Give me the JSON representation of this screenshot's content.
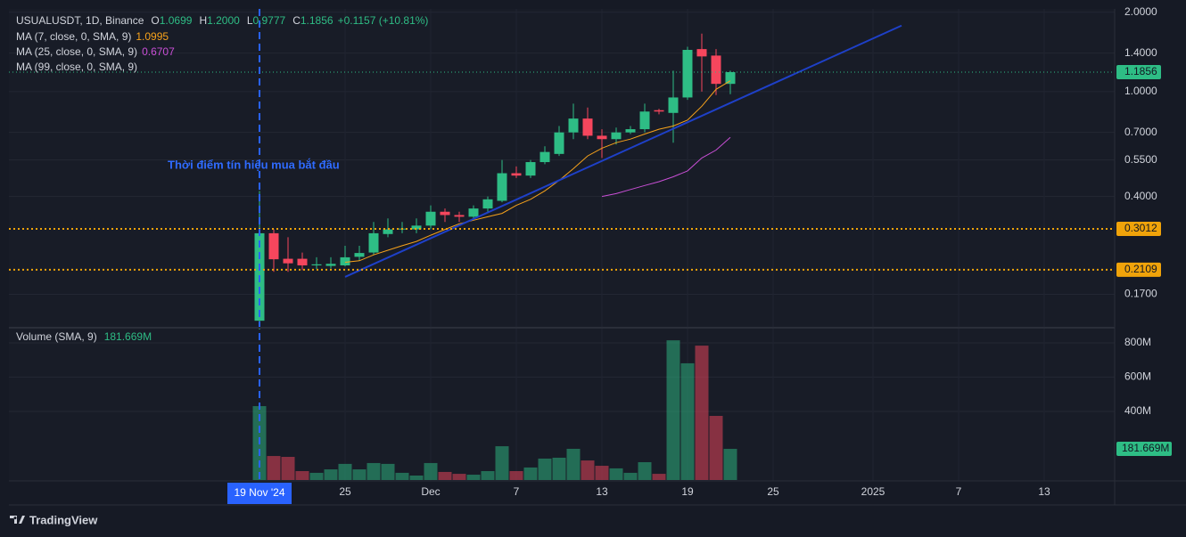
{
  "chart_data": {
    "type": "candlestick",
    "header": {
      "symbol": "USUALUSDT, 1D, Binance",
      "ohlc": [
        {
          "key": "O",
          "value": "1.0699"
        },
        {
          "key": "H",
          "value": "1.2000"
        },
        {
          "key": "L",
          "value": "0.9777"
        },
        {
          "key": "C",
          "value": "1.1856"
        }
      ],
      "change": "+0.1157 (+10.81%)"
    },
    "x": [
      "2024-11-19",
      "2024-11-20",
      "2024-11-21",
      "2024-11-22",
      "2024-11-23",
      "2024-11-24",
      "2024-11-25",
      "2024-11-26",
      "2024-11-27",
      "2024-11-28",
      "2024-11-29",
      "2024-11-30",
      "2024-12-01",
      "2024-12-02",
      "2024-12-03",
      "2024-12-04",
      "2024-12-05",
      "2024-12-06",
      "2024-12-07",
      "2024-12-08",
      "2024-12-09",
      "2024-12-10",
      "2024-12-11",
      "2024-12-12",
      "2024-12-13",
      "2024-12-14",
      "2024-12-15",
      "2024-12-16",
      "2024-12-17",
      "2024-12-18",
      "2024-12-19",
      "2024-12-20",
      "2024-12-21",
      "2024-12-22"
    ],
    "open": [
      0.135,
      0.29,
      0.232,
      0.232,
      0.219,
      0.218,
      0.219,
      0.236,
      0.245,
      0.288,
      0.3,
      0.3,
      0.31,
      0.35,
      0.34,
      0.335,
      0.36,
      0.385,
      0.49,
      0.48,
      0.54,
      0.58,
      0.7,
      0.79,
      0.68,
      0.66,
      0.7,
      0.72,
      0.85,
      0.83,
      0.95,
      1.45,
      1.37,
      1.0699
    ],
    "high": [
      0.42,
      0.3,
      0.28,
      0.245,
      0.235,
      0.235,
      0.26,
      0.26,
      0.32,
      0.33,
      0.32,
      0.33,
      0.37,
      0.36,
      0.35,
      0.37,
      0.4,
      0.55,
      0.52,
      0.55,
      0.62,
      0.74,
      0.9,
      0.87,
      0.72,
      0.73,
      0.74,
      0.9,
      0.86,
      1.2,
      1.48,
      1.66,
      1.45,
      1.2
    ],
    "low": [
      0.125,
      0.207,
      0.207,
      0.21,
      0.212,
      0.213,
      0.217,
      0.228,
      0.24,
      0.28,
      0.29,
      0.29,
      0.3,
      0.32,
      0.32,
      0.33,
      0.35,
      0.38,
      0.47,
      0.47,
      0.53,
      0.57,
      0.66,
      0.66,
      0.56,
      0.63,
      0.69,
      0.7,
      0.82,
      0.64,
      0.93,
      1.0,
      0.97,
      0.9777
    ],
    "close": [
      0.29,
      0.231,
      0.223,
      0.219,
      0.221,
      0.222,
      0.235,
      0.244,
      0.29,
      0.3,
      0.302,
      0.31,
      0.35,
      0.34,
      0.335,
      0.36,
      0.39,
      0.49,
      0.48,
      0.54,
      0.59,
      0.7,
      0.79,
      0.68,
      0.66,
      0.7,
      0.72,
      0.84,
      0.84,
      0.95,
      1.44,
      1.36,
      1.07,
      1.1856
    ],
    "up_color": "#2ebd85",
    "down_color": "#f6465d",
    "moving_averages": [
      {
        "name": "MA (7, close, 0, SMA, 9)",
        "color": "#f7a21b",
        "values": [
          null,
          null,
          null,
          null,
          null,
          null,
          0.225,
          0.228,
          0.24,
          0.25,
          0.26,
          0.27,
          0.285,
          0.3,
          0.315,
          0.325,
          0.335,
          0.345,
          0.37,
          0.39,
          0.42,
          0.46,
          0.51,
          0.57,
          0.61,
          0.64,
          0.66,
          0.69,
          0.72,
          0.74,
          0.78,
          0.88,
          1.02,
          1.0995
        ]
      },
      {
        "name": "MA (25, close, 0, SMA, 9)",
        "color": "#c94fd6",
        "values": [
          null,
          null,
          null,
          null,
          null,
          null,
          null,
          null,
          null,
          null,
          null,
          null,
          null,
          null,
          null,
          null,
          null,
          null,
          null,
          null,
          null,
          null,
          null,
          null,
          0.4,
          0.41,
          0.425,
          0.44,
          0.455,
          0.475,
          0.5,
          0.56,
          0.6,
          0.6707
        ]
      },
      {
        "name": "MA (99, close, 0, SMA, 9)",
        "color": "#5d9cec",
        "values": [
          null,
          null,
          null,
          null,
          null,
          null,
          null,
          null,
          null,
          null,
          null,
          null,
          null,
          null,
          null,
          null,
          null,
          null,
          null,
          null,
          null,
          null,
          null,
          null,
          null,
          null,
          null,
          null,
          null,
          null,
          null,
          null,
          null,
          null
        ]
      }
    ],
    "levels": [
      {
        "value": 0.3012,
        "color": "#f0a30a"
      },
      {
        "value": 0.2109,
        "color": "#f0a30a"
      }
    ],
    "trend_line": {
      "from": [
        "2024-11-25",
        0.198
      ],
      "to": [
        "2025-01-03",
        1.78
      ],
      "color": "#1e40c8"
    },
    "annotation": "Thời điểm tín hiệu mua bắt đầu",
    "crosshair": {
      "x": "2024-11-19",
      "label": "19 Nov '24"
    },
    "log_scale": true,
    "xlim": [
      "2024-11-01",
      "2025-01-18"
    ],
    "xticks": [
      {
        "value": "2024-11-25",
        "label": "25"
      },
      {
        "value": "2024-12-01",
        "label": "Dec"
      },
      {
        "value": "2024-12-07",
        "label": "7"
      },
      {
        "value": "2024-12-13",
        "label": "13"
      },
      {
        "value": "2024-12-19",
        "label": "19"
      },
      {
        "value": "2024-12-25",
        "label": "25"
      },
      {
        "value": "2025-01-01",
        "label": "2025"
      },
      {
        "value": "2025-01-07",
        "label": "7"
      },
      {
        "value": "2025-01-13",
        "label": "13"
      }
    ],
    "ylim": [
      0.13,
      2.06
    ],
    "yticks": [
      {
        "value": 2.0,
        "label": "2.0000"
      },
      {
        "value": 1.4,
        "label": "1.4000"
      },
      {
        "value": 1.0,
        "label": "1.0000"
      },
      {
        "value": 0.7,
        "label": "0.7000"
      },
      {
        "value": 0.55,
        "label": "0.5500"
      },
      {
        "value": 0.4,
        "label": "0.4000"
      },
      {
        "value": 0.17,
        "label": "0.1700"
      }
    ],
    "volume_title": "Volume (SMA, 9)",
    "volume": [
      431000000,
      140000000,
      135000000,
      52000000,
      42000000,
      62000000,
      94000000,
      62000000,
      99000000,
      94000000,
      42000000,
      26000000,
      99000000,
      47000000,
      36000000,
      31000000,
      52000000,
      197000000,
      52000000,
      73000000,
      125000000,
      130000000,
      182000000,
      114000000,
      83000000,
      68000000,
      42000000,
      104000000,
      36000000,
      815000000,
      681000000,
      784000000,
      374000000,
      181669000
    ],
    "volume_value_label": "181.669M",
    "volume_ylim": [
      0,
      878000000
    ],
    "volume_yticks": [
      {
        "value": 800000000,
        "label": "800M"
      },
      {
        "value": 600000000,
        "label": "600M"
      },
      {
        "value": 400000000,
        "label": "400M"
      }
    ],
    "grid": true,
    "footer": "TradingView"
  }
}
